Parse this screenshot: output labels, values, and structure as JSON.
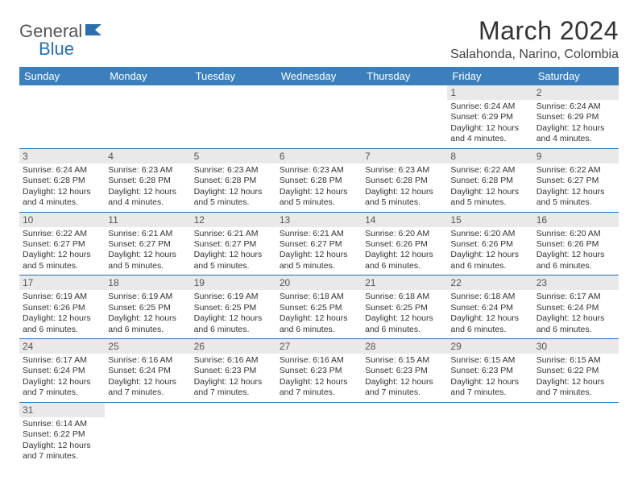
{
  "logo": {
    "part1": "General",
    "part2": "Blue"
  },
  "title": "March 2024",
  "location": "Salahonda, Narino, Colombia",
  "colors": {
    "header_bg": "#3b80bd",
    "header_text": "#ffffff",
    "row_divider": "#2b6fad",
    "daynum_bg": "#e9e9e9",
    "text": "#333333",
    "logo_accent": "#2b6fad"
  },
  "fonts": {
    "title_size": 32,
    "location_size": 16,
    "dayheader_size": 13,
    "daynum_size": 12,
    "body_size": 10.5
  },
  "day_headers": [
    "Sunday",
    "Monday",
    "Tuesday",
    "Wednesday",
    "Thursday",
    "Friday",
    "Saturday"
  ],
  "weeks": [
    [
      null,
      null,
      null,
      null,
      null,
      {
        "n": "1",
        "sunrise": "6:24 AM",
        "sunset": "6:29 PM",
        "dl": "12 hours and 4 minutes."
      },
      {
        "n": "2",
        "sunrise": "6:24 AM",
        "sunset": "6:29 PM",
        "dl": "12 hours and 4 minutes."
      }
    ],
    [
      {
        "n": "3",
        "sunrise": "6:24 AM",
        "sunset": "6:28 PM",
        "dl": "12 hours and 4 minutes."
      },
      {
        "n": "4",
        "sunrise": "6:23 AM",
        "sunset": "6:28 PM",
        "dl": "12 hours and 4 minutes."
      },
      {
        "n": "5",
        "sunrise": "6:23 AM",
        "sunset": "6:28 PM",
        "dl": "12 hours and 5 minutes."
      },
      {
        "n": "6",
        "sunrise": "6:23 AM",
        "sunset": "6:28 PM",
        "dl": "12 hours and 5 minutes."
      },
      {
        "n": "7",
        "sunrise": "6:23 AM",
        "sunset": "6:28 PM",
        "dl": "12 hours and 5 minutes."
      },
      {
        "n": "8",
        "sunrise": "6:22 AM",
        "sunset": "6:28 PM",
        "dl": "12 hours and 5 minutes."
      },
      {
        "n": "9",
        "sunrise": "6:22 AM",
        "sunset": "6:27 PM",
        "dl": "12 hours and 5 minutes."
      }
    ],
    [
      {
        "n": "10",
        "sunrise": "6:22 AM",
        "sunset": "6:27 PM",
        "dl": "12 hours and 5 minutes."
      },
      {
        "n": "11",
        "sunrise": "6:21 AM",
        "sunset": "6:27 PM",
        "dl": "12 hours and 5 minutes."
      },
      {
        "n": "12",
        "sunrise": "6:21 AM",
        "sunset": "6:27 PM",
        "dl": "12 hours and 5 minutes."
      },
      {
        "n": "13",
        "sunrise": "6:21 AM",
        "sunset": "6:27 PM",
        "dl": "12 hours and 5 minutes."
      },
      {
        "n": "14",
        "sunrise": "6:20 AM",
        "sunset": "6:26 PM",
        "dl": "12 hours and 6 minutes."
      },
      {
        "n": "15",
        "sunrise": "6:20 AM",
        "sunset": "6:26 PM",
        "dl": "12 hours and 6 minutes."
      },
      {
        "n": "16",
        "sunrise": "6:20 AM",
        "sunset": "6:26 PM",
        "dl": "12 hours and 6 minutes."
      }
    ],
    [
      {
        "n": "17",
        "sunrise": "6:19 AM",
        "sunset": "6:26 PM",
        "dl": "12 hours and 6 minutes."
      },
      {
        "n": "18",
        "sunrise": "6:19 AM",
        "sunset": "6:25 PM",
        "dl": "12 hours and 6 minutes."
      },
      {
        "n": "19",
        "sunrise": "6:19 AM",
        "sunset": "6:25 PM",
        "dl": "12 hours and 6 minutes."
      },
      {
        "n": "20",
        "sunrise": "6:18 AM",
        "sunset": "6:25 PM",
        "dl": "12 hours and 6 minutes."
      },
      {
        "n": "21",
        "sunrise": "6:18 AM",
        "sunset": "6:25 PM",
        "dl": "12 hours and 6 minutes."
      },
      {
        "n": "22",
        "sunrise": "6:18 AM",
        "sunset": "6:24 PM",
        "dl": "12 hours and 6 minutes."
      },
      {
        "n": "23",
        "sunrise": "6:17 AM",
        "sunset": "6:24 PM",
        "dl": "12 hours and 6 minutes."
      }
    ],
    [
      {
        "n": "24",
        "sunrise": "6:17 AM",
        "sunset": "6:24 PM",
        "dl": "12 hours and 7 minutes."
      },
      {
        "n": "25",
        "sunrise": "6:16 AM",
        "sunset": "6:24 PM",
        "dl": "12 hours and 7 minutes."
      },
      {
        "n": "26",
        "sunrise": "6:16 AM",
        "sunset": "6:23 PM",
        "dl": "12 hours and 7 minutes."
      },
      {
        "n": "27",
        "sunrise": "6:16 AM",
        "sunset": "6:23 PM",
        "dl": "12 hours and 7 minutes."
      },
      {
        "n": "28",
        "sunrise": "6:15 AM",
        "sunset": "6:23 PM",
        "dl": "12 hours and 7 minutes."
      },
      {
        "n": "29",
        "sunrise": "6:15 AM",
        "sunset": "6:23 PM",
        "dl": "12 hours and 7 minutes."
      },
      {
        "n": "30",
        "sunrise": "6:15 AM",
        "sunset": "6:22 PM",
        "dl": "12 hours and 7 minutes."
      }
    ],
    [
      {
        "n": "31",
        "sunrise": "6:14 AM",
        "sunset": "6:22 PM",
        "dl": "12 hours and 7 minutes."
      },
      null,
      null,
      null,
      null,
      null,
      null
    ]
  ],
  "labels": {
    "sunrise": "Sunrise: ",
    "sunset": "Sunset: ",
    "daylight": "Daylight: "
  }
}
